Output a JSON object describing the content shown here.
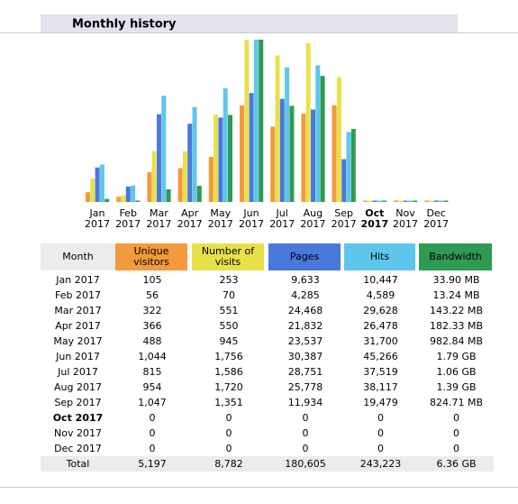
{
  "header": {
    "title": "Monthly history"
  },
  "chart_data": {
    "type": "bar",
    "categories": [
      "Jan",
      "Feb",
      "Mar",
      "Apr",
      "May",
      "Jun",
      "Jul",
      "Aug",
      "Sep",
      "Oct",
      "Nov",
      "Dec"
    ],
    "category_years": [
      "2017",
      "2017",
      "2017",
      "2017",
      "2017",
      "2017",
      "2017",
      "2017",
      "2017",
      "2017",
      "2017",
      "2017"
    ],
    "current": 9,
    "series": [
      {
        "name": "Unique visitors",
        "color": "#f39a3c",
        "values": [
          105,
          56,
          322,
          366,
          488,
          1044,
          815,
          954,
          1047,
          0,
          0,
          0
        ],
        "value_labels": [
          "105",
          "56",
          "322",
          "366",
          "488",
          "1,044",
          "815",
          "954",
          "1,047",
          "0",
          "0",
          "0"
        ]
      },
      {
        "name": "Number of visits",
        "color": "#e8e04a",
        "values": [
          253,
          70,
          551,
          550,
          945,
          1756,
          1586,
          1720,
          1351,
          0,
          0,
          0
        ],
        "value_labels": [
          "253",
          "70",
          "551",
          "550",
          "945",
          "1,756",
          "1,586",
          "1,720",
          "1,351",
          "0",
          "0",
          "0"
        ]
      },
      {
        "name": "Pages",
        "color": "#4a79dd",
        "values": [
          9633,
          4285,
          24468,
          21832,
          23537,
          30387,
          28751,
          25778,
          11934,
          0,
          0,
          0
        ],
        "value_labels": [
          "9,633",
          "4,285",
          "24,468",
          "21,832",
          "23,537",
          "30,387",
          "28,751",
          "25,778",
          "11,934",
          "0",
          "0",
          "0"
        ]
      },
      {
        "name": "Hits",
        "color": "#5ec6ea",
        "values": [
          10447,
          4589,
          29628,
          26478,
          31700,
          45266,
          37519,
          38117,
          19479,
          0,
          0,
          0
        ],
        "value_labels": [
          "10,447",
          "4,589",
          "29,628",
          "26,478",
          "31,700",
          "45,266",
          "37,519",
          "38,117",
          "19,479",
          "0",
          "0",
          "0"
        ]
      },
      {
        "name": "Bandwidth",
        "color": "#2f9a52",
        "values": [
          33.9,
          13.24,
          143.22,
          182.33,
          982.84,
          1832.96,
          1085.44,
          1423.36,
          824.71,
          0,
          0,
          0
        ],
        "value_labels": [
          "33.90 MB",
          "13.24 MB",
          "143.22 MB",
          "182.33 MB",
          "982.84 MB",
          "1.79 GB",
          "1.06 GB",
          "1.39 GB",
          "824.71 MB",
          "0",
          "0",
          "0"
        ]
      }
    ]
  },
  "table": {
    "month_header": "Month",
    "months": [
      "Jan 2017",
      "Feb 2017",
      "Mar 2017",
      "Apr 2017",
      "May 2017",
      "Jun 2017",
      "Jul 2017",
      "Aug 2017",
      "Sep 2017",
      "Oct 2017",
      "Nov 2017",
      "Dec 2017"
    ],
    "total_label": "Total",
    "totals": [
      "5,197",
      "8,782",
      "180,605",
      "243,223",
      "6.36 GB"
    ]
  }
}
